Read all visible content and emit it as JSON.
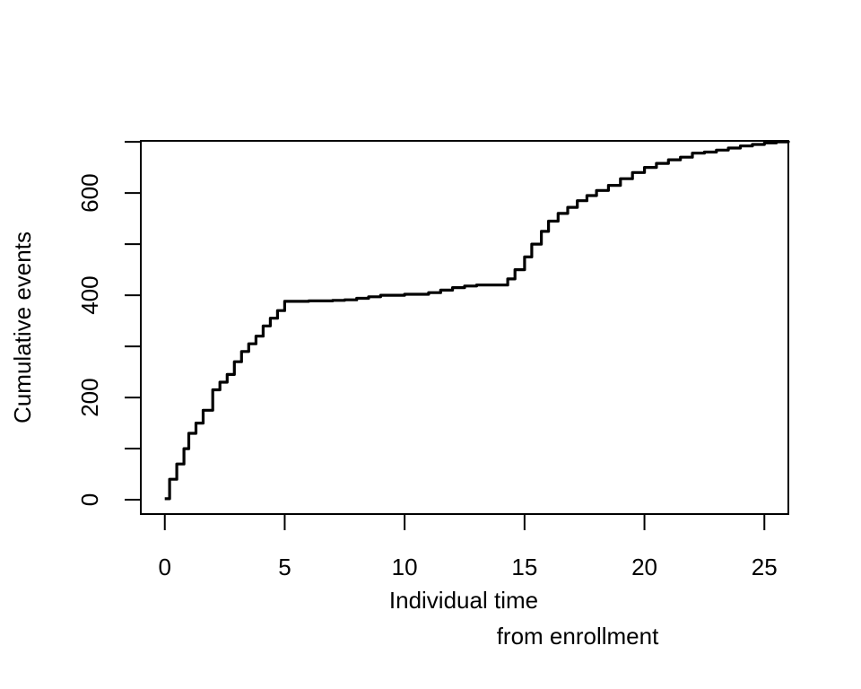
{
  "chart_data": {
    "type": "line",
    "title": "",
    "xlabel_lines": [
      "Individual time",
      "from enrollment"
    ],
    "ylabel": "Cumulative events",
    "xlim": [
      -1,
      26
    ],
    "ylim": [
      -28,
      702
    ],
    "xticks": [
      0,
      5,
      10,
      15,
      20,
      25
    ],
    "yticks": [
      0,
      100,
      200,
      300,
      400,
      500,
      600,
      700
    ],
    "yticklabels": [
      "0",
      "",
      "200",
      "",
      "400",
      "",
      "600",
      ""
    ],
    "grid": false,
    "legend": "none",
    "series": [
      {
        "color": "#000000",
        "x": [
          0,
          0.2,
          0.5,
          0.8,
          1.0,
          1.3,
          1.6,
          2.0,
          2.3,
          2.6,
          2.9,
          3.2,
          3.5,
          3.8,
          4.1,
          4.4,
          4.7,
          5.0,
          5.5,
          6.0,
          7.0,
          7.5,
          8.0,
          8.5,
          9.0,
          10.0,
          11.0,
          11.5,
          12.0,
          12.5,
          13.0,
          13.5,
          14.0,
          14.3,
          14.6,
          15.0,
          15.3,
          15.7,
          16.0,
          16.4,
          16.8,
          17.2,
          17.6,
          18.0,
          18.5,
          19.0,
          19.5,
          20.0,
          20.5,
          21.0,
          21.5,
          22.0,
          22.5,
          23.0,
          23.5,
          24.0,
          24.5,
          25.0,
          25.5,
          26.0
        ],
        "y": [
          2,
          40,
          70,
          100,
          130,
          150,
          175,
          215,
          230,
          245,
          270,
          290,
          305,
          320,
          340,
          355,
          370,
          388,
          388,
          389,
          390,
          391,
          394,
          397,
          400,
          402,
          405,
          410,
          415,
          418,
          420,
          420,
          420,
          432,
          450,
          475,
          500,
          525,
          545,
          560,
          572,
          585,
          595,
          605,
          615,
          628,
          640,
          650,
          658,
          665,
          670,
          678,
          680,
          684,
          688,
          692,
          695,
          698,
          700,
          702
        ]
      }
    ]
  }
}
